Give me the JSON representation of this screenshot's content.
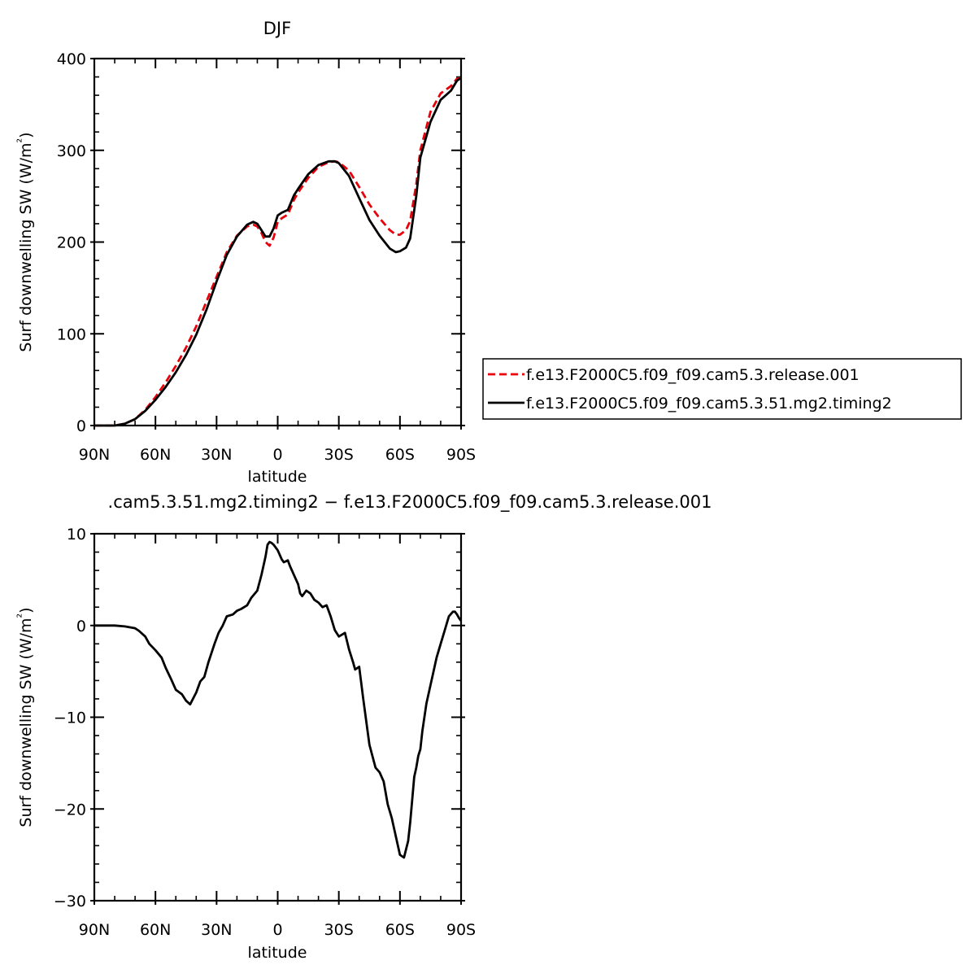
{
  "chart_data": [
    {
      "type": "line",
      "title": "DJF",
      "xlabel": "latitude",
      "ylabel": "Surf downwelling SW (W/m²)",
      "x_ticks": [
        "90N",
        "60N",
        "30N",
        "0",
        "30S",
        "60S",
        "90S"
      ],
      "y_ticks": [
        "0",
        "100",
        "200",
        "300",
        "400"
      ],
      "xlim": [
        90,
        -90
      ],
      "ylim": [
        0,
        400
      ],
      "legend_position": "right",
      "series": [
        {
          "name": "f.e13.F2000C5.f09_f09.cam5.3.release.001",
          "color": "#e8000b",
          "dash": true,
          "x": [
            90,
            85,
            80,
            75,
            70,
            65,
            60,
            55,
            50,
            45,
            40,
            35,
            30,
            25,
            20,
            15,
            12,
            10,
            8,
            6,
            4,
            2,
            0,
            -2,
            -5,
            -8,
            -10,
            -15,
            -20,
            -25,
            -28,
            -30,
            -35,
            -40,
            -45,
            -50,
            -55,
            -58,
            -60,
            -63,
            -65,
            -68,
            -70,
            -75,
            -80,
            -85,
            -88,
            -90
          ],
          "y": [
            0,
            0,
            0,
            2,
            7,
            17,
            31,
            47,
            65,
            85,
            108,
            135,
            162,
            189,
            207,
            217,
            219,
            217,
            210,
            200,
            196,
            205,
            222,
            226,
            230,
            246,
            254,
            270,
            282,
            287,
            288,
            287,
            278,
            260,
            241,
            226,
            213,
            208,
            208,
            213,
            223,
            263,
            300,
            342,
            362,
            370,
            378,
            379
          ]
        },
        {
          "name": "f.e13.F2000C5.f09_f09.cam5.3.51.mg2.timing2",
          "color": "#000000",
          "dash": false,
          "x": [
            90,
            85,
            80,
            75,
            70,
            65,
            60,
            55,
            50,
            45,
            40,
            35,
            30,
            25,
            20,
            15,
            12,
            10,
            8,
            6,
            4,
            2,
            0,
            -2,
            -5,
            -8,
            -10,
            -15,
            -20,
            -25,
            -28,
            -30,
            -35,
            -40,
            -45,
            -50,
            -55,
            -58,
            -60,
            -63,
            -65,
            -68,
            -70,
            -75,
            -80,
            -85,
            -88,
            -90
          ],
          "y": [
            0,
            0,
            0,
            2,
            7,
            16,
            28,
            42,
            58,
            77,
            99,
            126,
            157,
            186,
            206,
            219,
            222,
            220,
            213,
            206,
            206,
            215,
            229,
            232,
            235,
            251,
            258,
            274,
            284,
            288,
            288,
            286,
            272,
            248,
            224,
            207,
            193,
            189,
            190,
            194,
            204,
            250,
            292,
            331,
            355,
            365,
            376,
            379
          ]
        }
      ]
    },
    {
      "type": "line",
      "title": ".cam5.3.51.mg2.timing2 − f.e13.F2000C5.f09_f09.cam5.3.release.001",
      "xlabel": "latitude",
      "ylabel": "Surf downwelling SW (W/m²)",
      "x_ticks": [
        "90N",
        "60N",
        "30N",
        "0",
        "30S",
        "60S",
        "90S"
      ],
      "y_ticks": [
        "−30",
        "−20",
        "−10",
        "0",
        "10"
      ],
      "xlim": [
        90,
        -90
      ],
      "ylim": [
        -30,
        10
      ],
      "series": [
        {
          "color": "#000000",
          "dash": false,
          "x": [
            90,
            85,
            80,
            75,
            70,
            68,
            65,
            63,
            60,
            57,
            55,
            52,
            50,
            47,
            45,
            43,
            40,
            38,
            36,
            34,
            31,
            29,
            27,
            25,
            22,
            20,
            18,
            15,
            13,
            10,
            8,
            6,
            5,
            4,
            3,
            2,
            0,
            -2,
            -3,
            -5,
            -6,
            -8,
            -10,
            -11,
            -12,
            -14,
            -16,
            -18,
            -20,
            -22,
            -24,
            -26,
            -28,
            -30,
            -33,
            -35,
            -37,
            -38,
            -40,
            -42,
            -45,
            -48,
            -50,
            -52,
            -54,
            -56,
            -58,
            -60,
            -62,
            -64,
            -65,
            -66,
            -67,
            -68,
            -69,
            -70,
            -71,
            -73,
            -75,
            -76,
            -78,
            -80,
            -82,
            -84,
            -86,
            -87,
            -88,
            -89,
            -90
          ],
          "y": [
            0,
            0,
            0,
            -0.1,
            -0.3,
            -0.6,
            -1.2,
            -2,
            -2.7,
            -3.5,
            -4.6,
            -6,
            -7,
            -7.5,
            -8.2,
            -8.6,
            -7.3,
            -6.1,
            -5.6,
            -4,
            -2,
            -0.8,
            0,
            1,
            1.2,
            1.6,
            1.8,
            2.2,
            3,
            3.8,
            5.5,
            7.5,
            8.8,
            9.1,
            9.0,
            8.8,
            8.2,
            7.2,
            6.9,
            7.1,
            6.5,
            5.5,
            4.5,
            3.5,
            3.2,
            3.8,
            3.5,
            2.8,
            2.5,
            2.0,
            2.2,
            1.0,
            -0.5,
            -1.2,
            -0.8,
            -2.6,
            -4.0,
            -4.8,
            -4.5,
            -8,
            -13,
            -15.5,
            -16,
            -17,
            -19.5,
            -21,
            -23,
            -25,
            -25.3,
            -23.5,
            -21.5,
            -19,
            -16.5,
            -15.5,
            -14.2,
            -13.5,
            -11.5,
            -8.5,
            -6.5,
            -5.5,
            -3.5,
            -2,
            -0.5,
            1.0,
            1.5,
            1.5,
            1.2,
            0.8,
            0.5
          ]
        }
      ]
    }
  ]
}
